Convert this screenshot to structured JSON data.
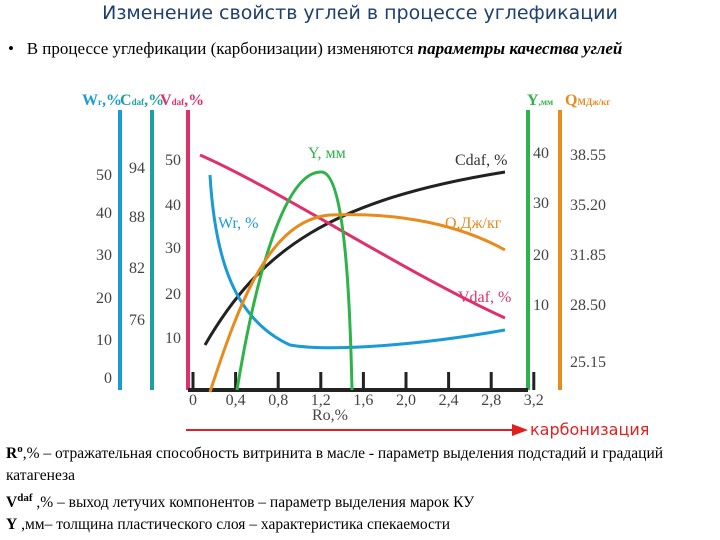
{
  "header": {
    "title": "Изменение свойств углей в процессе углефикации"
  },
  "bullet": {
    "text": "В процессе углефикации (карбонизации) изменяются ",
    "emphasis": "параметры качества углей"
  },
  "chart": {
    "axis_labels": [
      {
        "base": "W",
        "sub": "r",
        "unit": ",%"
      },
      {
        "base": "C",
        "sub": "daf",
        "unit": ",%"
      },
      {
        "base": "V",
        "sub": "daf",
        "unit": ",%"
      },
      {
        "base": "Y",
        "sub": ",мм",
        "unit": ""
      },
      {
        "base": "Q",
        "sub": "МДж/кг",
        "unit": ""
      }
    ],
    "w_ticks": [
      "50",
      "40",
      "30",
      "20",
      "10",
      "0"
    ],
    "c_ticks": [
      "94",
      "88",
      "82",
      "76"
    ],
    "v_ticks": [
      "50",
      "40",
      "30",
      "20",
      "10"
    ],
    "y_ticks": [
      "40",
      "30",
      "20",
      "10"
    ],
    "q_ticks": [
      "38.55",
      "35.20",
      "31.85",
      "28.50",
      "25.15"
    ],
    "x_ticks": [
      "0",
      "0,4",
      "0,8",
      "1,2",
      "1,6",
      "2,0",
      "2,4",
      "2,8",
      "3,2"
    ],
    "x_label": "Ro,%",
    "curve_labels": {
      "y": "Y, мм",
      "c": "Cdaf, %",
      "w": "Wr, %",
      "q": "Q,Дж/кг",
      "v": "Vdaf, %"
    },
    "arrow_label": "карбонизация"
  },
  "notes": [
    {
      "term": "R",
      "sup": "o",
      "rest": ",% – отражательная способность витринита в масле - параметр выделения подстадий и градаций катагенеза"
    },
    {
      "term": "V",
      "sup": "daf",
      "rest": " ,% – выход летучих компонентов – параметр выделения марок КУ"
    },
    {
      "term": "Y",
      "sup": "",
      "rest": " ,мм– толщина пластического слоя – характеристика спекаемости"
    }
  ]
}
